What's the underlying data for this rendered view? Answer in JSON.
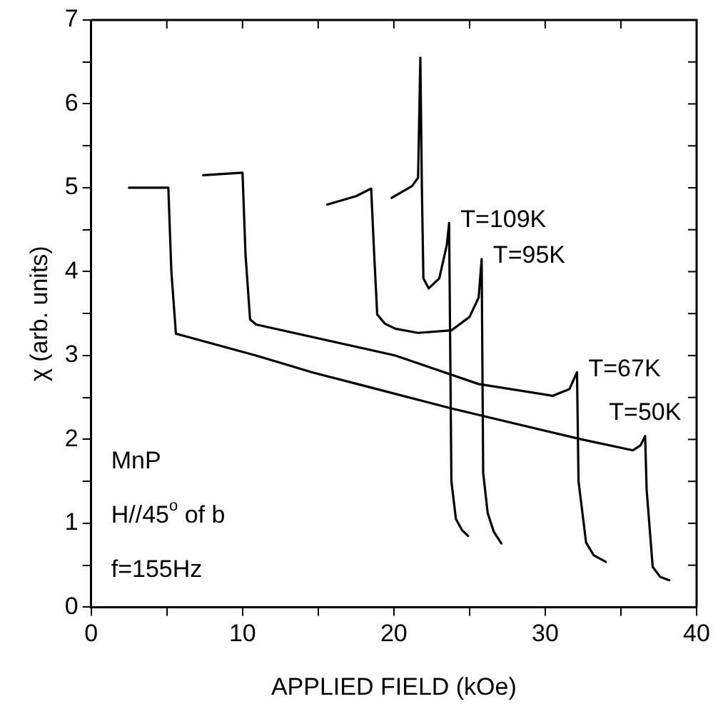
{
  "chart_data": {
    "type": "line",
    "xlabel": "APPLIED FIELD (kOe)",
    "ylabel": "χ (arb. units)",
    "xlim": [
      0,
      40
    ],
    "xticks": [
      0,
      {
        "value": 5,
        "label": null
      },
      10,
      {
        "value": 15,
        "label": null
      },
      20,
      {
        "value": 25,
        "label": null
      },
      30,
      {
        "value": 35,
        "label": null
      },
      40
    ],
    "ylim": [
      0,
      7
    ],
    "yticks": [
      0,
      {
        "value": 0.5,
        "label": null
      },
      1,
      {
        "value": 1.5,
        "label": null
      },
      2,
      {
        "value": 2.5,
        "label": null
      },
      3,
      {
        "value": 3.5,
        "label": null
      },
      4,
      {
        "value": 4.5,
        "label": null
      },
      5,
      {
        "value": 5.5,
        "label": null
      },
      6,
      {
        "value": 6.5,
        "label": null
      },
      7
    ],
    "grid": false,
    "legend": false,
    "marker": "none",
    "line_style": "solid",
    "series": [
      {
        "color": "#000000",
        "x": [
          2.5,
          5.1,
          5.3,
          5.6,
          10.9,
          14.6,
          23.8,
          32.4,
          35.8,
          36.3,
          36.6,
          36.7,
          37.1,
          37.6,
          38.2
        ],
        "values": [
          5.0,
          5.0,
          4.0,
          3.26,
          3.0,
          2.8,
          2.37,
          2.0,
          1.87,
          1.93,
          2.04,
          1.4,
          0.48,
          0.36,
          0.32
        ]
      },
      {
        "color": "#000000",
        "x": [
          7.4,
          10.0,
          10.2,
          10.5,
          10.9,
          20.1,
          25.6,
          30.5,
          31.6,
          32.1,
          32.2,
          32.7,
          33.2,
          34.0
        ],
        "values": [
          5.15,
          5.18,
          4.2,
          3.43,
          3.37,
          3.0,
          2.66,
          2.52,
          2.6,
          2.8,
          1.5,
          0.77,
          0.62,
          0.54
        ]
      },
      {
        "color": "#000000",
        "x": [
          15.6,
          17.5,
          18.5,
          18.7,
          18.9,
          19.4,
          20.1,
          21.6,
          23.8,
          25.0,
          25.6,
          25.8,
          25.9,
          26.2,
          26.6,
          27.1
        ],
        "values": [
          4.8,
          4.9,
          4.99,
          4.2,
          3.49,
          3.38,
          3.32,
          3.27,
          3.3,
          3.46,
          3.69,
          4.15,
          1.6,
          1.12,
          0.9,
          0.76
        ]
      },
      {
        "color": "#000000",
        "x": [
          19.85,
          21.2,
          21.6,
          21.75,
          21.85,
          21.95,
          22.3,
          23.0,
          23.5,
          23.65,
          23.8,
          24.1,
          24.5,
          24.9
        ],
        "values": [
          4.88,
          5.02,
          5.12,
          6.55,
          5.0,
          3.92,
          3.8,
          3.92,
          4.32,
          4.58,
          1.5,
          1.05,
          0.92,
          0.85
        ]
      }
    ],
    "annotations": [
      {
        "text": "T=109K",
        "x": 23.65,
        "y": 4.58
      },
      {
        "text": "T=95K",
        "x": 25.8,
        "y": 4.15
      },
      {
        "text": "T=67K",
        "x": 32.1,
        "y": 2.8
      },
      {
        "text": "T=50K",
        "x": 36.6,
        "y": 2.04
      },
      "MnP",
      "H//45$^{o}$ of b",
      "f=155Hz"
    ]
  }
}
